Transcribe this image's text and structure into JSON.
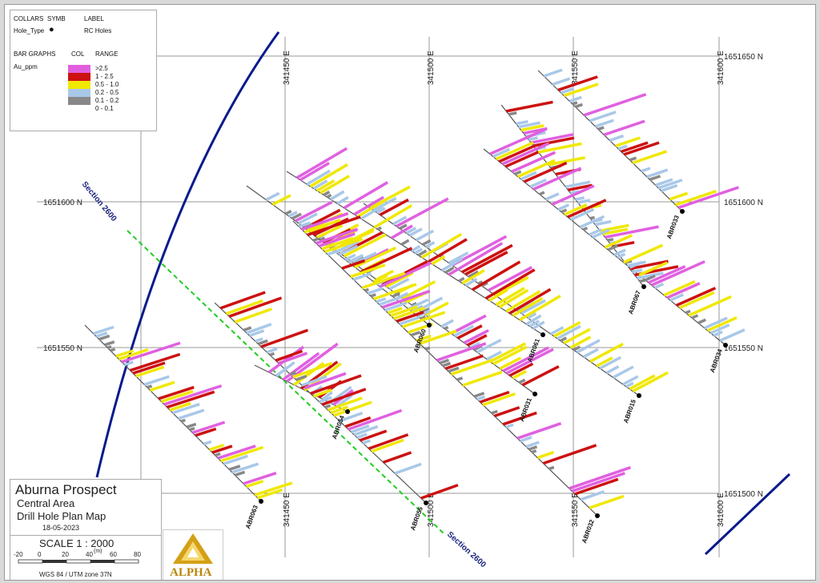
{
  "legend": {
    "collars_label": "COLLARS",
    "symb_label": "SYMB",
    "label_label": "LABEL",
    "hole_type": "Hole_Type",
    "rc_holes": "RC Holes",
    "bar_graphs": "BAR GRAPHS",
    "col": "COL",
    "range": "RANGE",
    "variable": "Au_ppm",
    "ranges": [
      {
        "label": ">2.5",
        "color": "#e060e0"
      },
      {
        "label": "1 - 2.5",
        "color": "#cc1111"
      },
      {
        "label": "0.5 - 1.0",
        "color": "#f0e800"
      },
      {
        "label": "0.2 - 0.5",
        "color": "#a9c8e8"
      },
      {
        "label": "0.1 - 0.2",
        "color": "#888888"
      },
      {
        "label": "0 - 0.1",
        "color": "#ffffff"
      }
    ]
  },
  "grid": {
    "eastings": [
      "341450 E",
      "341500 E",
      "341550 E",
      "341600 E"
    ],
    "northings": [
      "1651650 N",
      "1651600 N",
      "1651550 N",
      "1651500 N"
    ]
  },
  "section_label": "Section 2600",
  "holes": [
    "ABR033",
    "ABR067",
    "ABR034",
    "ABR015",
    "ABR061",
    "ABR031",
    "ABR060",
    "ABR054",
    "ABR063",
    "ABR055",
    "ABR032"
  ],
  "title": {
    "main": "Aburna Prospect",
    "area": "Central Area",
    "map": "Drill Hole Plan Map",
    "date": "18-05-2023"
  },
  "scale": {
    "label": "SCALE  1 : 2000",
    "unit": "(m)",
    "ticks": [
      "-20",
      "0",
      "20",
      "40",
      "60",
      "80"
    ],
    "projection": "WGS 84 / UTM zone 37N"
  },
  "logo_text": "ALPHA",
  "colors": {
    "section_line": "#22cc22",
    "boundary": "#0a1a8c",
    "trace": "#555555"
  }
}
